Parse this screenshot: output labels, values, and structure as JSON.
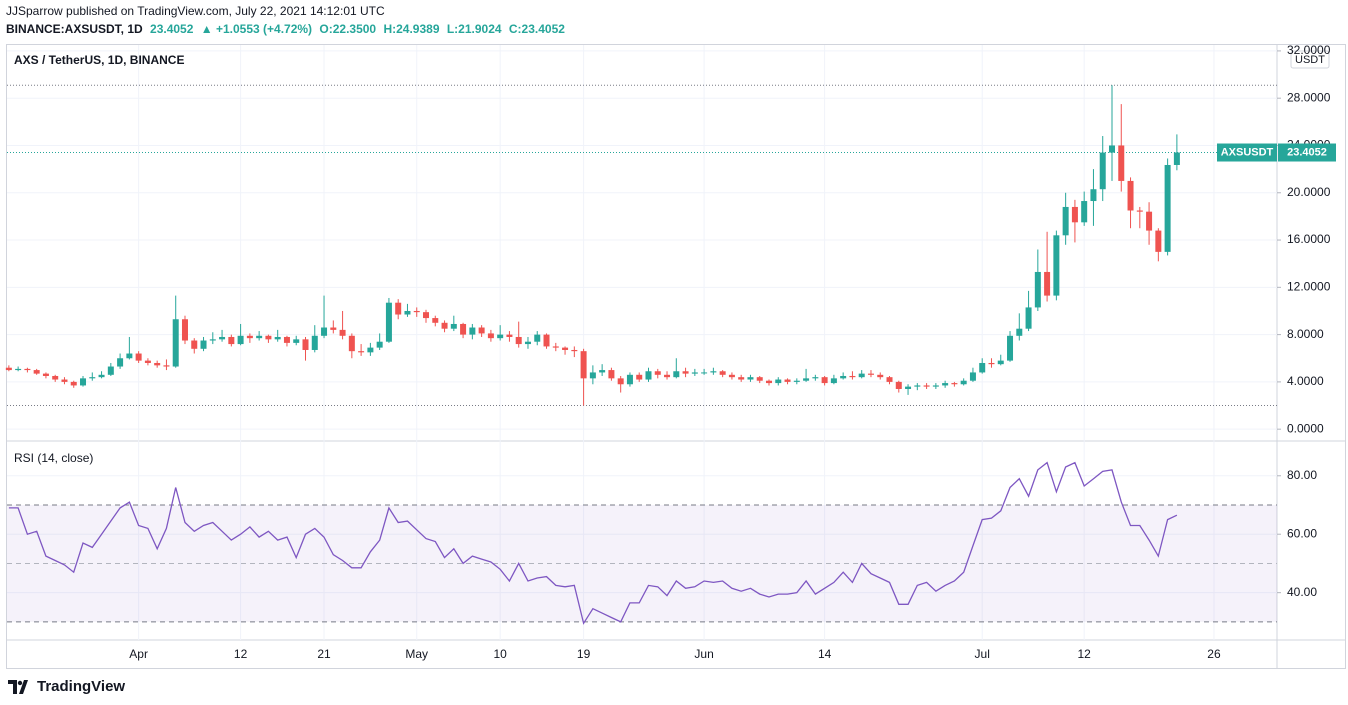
{
  "header": {
    "byline": "JJSparrow published on TradingView.com, July 22, 2021 14:12:01 UTC",
    "symbol": "BINANCE:AXSUSDT, 1D",
    "change": "▲ +1.0553 (+4.72%)",
    "ohlc": [
      "O:22.3500",
      "H:24.9389",
      "L:21.9024",
      "C:23.4052"
    ]
  },
  "footer": {
    "brand": "TradingView"
  },
  "chart_data": [
    {
      "type": "candlestick",
      "title": "AXS / TetherUS, 1D, BINANCE",
      "currency": "USDT",
      "symbol": "AXSUSDT",
      "up_color": "#26a69a",
      "down_color": "#ef5350",
      "ylim": [
        -1.0,
        32.5
      ],
      "yticks": [
        {
          "value": 0,
          "label": "0.0000"
        },
        {
          "value": 4,
          "label": "4.0000"
        },
        {
          "value": 8,
          "label": "8.0000"
        },
        {
          "value": 12,
          "label": "12.0000"
        },
        {
          "value": 16,
          "label": "16.0000"
        },
        {
          "value": 20,
          "label": "20.0000"
        },
        {
          "value": 24,
          "label": "24.0000"
        },
        {
          "value": 28,
          "label": "28.0000"
        },
        {
          "value": 32,
          "label": "32.0000"
        }
      ],
      "open": [
        5.2,
        5.0,
        5.1,
        5.0,
        4.7,
        4.5,
        4.2,
        4.0,
        3.7,
        4.3,
        4.4,
        4.6,
        5.3,
        6.0,
        6.4,
        5.8,
        5.6,
        5.4,
        5.3,
        9.3,
        7.5,
        6.8,
        7.5,
        7.6,
        7.8,
        7.2,
        7.9,
        7.7,
        7.9,
        7.6,
        7.8,
        7.3,
        7.6,
        6.7,
        7.9,
        8.6,
        8.4,
        7.9,
        6.6,
        6.5,
        6.9,
        7.4,
        10.7,
        9.7,
        10.0,
        9.9,
        9.4,
        9.0,
        8.5,
        8.9,
        8.0,
        8.6,
        8.1,
        7.7,
        8.0,
        7.8,
        7.2,
        7.4,
        8.0,
        7.0,
        6.9,
        6.7,
        6.6,
        4.3,
        4.8,
        5.0,
        4.3,
        3.8,
        4.6,
        4.2,
        4.9,
        4.6,
        4.4,
        4.9,
        4.7,
        4.8,
        4.8,
        4.9,
        4.6,
        4.4,
        4.2,
        4.4,
        4.1,
        3.9,
        4.2,
        4.0,
        4.1,
        4.3,
        4.4,
        3.9,
        4.3,
        4.5,
        4.4,
        4.7,
        4.6,
        4.4,
        4.0,
        3.4,
        3.6,
        3.7,
        3.6,
        3.7,
        3.9,
        3.8,
        4.1,
        4.8,
        5.6,
        5.5,
        5.8,
        7.9,
        8.5,
        10.3,
        13.3,
        11.3,
        16.4,
        18.8,
        17.5,
        19.3,
        20.3,
        23.4,
        24.0,
        21.0,
        18.5,
        18.4,
        16.8,
        15.0,
        22.35
      ],
      "high": [
        5.4,
        5.3,
        5.2,
        5.1,
        4.8,
        4.6,
        4.4,
        4.1,
        4.5,
        4.8,
        4.9,
        5.6,
        6.4,
        7.8,
        6.6,
        6.0,
        5.8,
        5.9,
        11.3,
        9.6,
        7.7,
        7.8,
        8.2,
        8.4,
        8.0,
        8.9,
        8.1,
        8.3,
        8.0,
        8.4,
        7.9,
        7.9,
        7.8,
        8.8,
        11.3,
        9.2,
        10.0,
        8.1,
        7.2,
        7.3,
        8.1,
        11.1,
        11.0,
        10.6,
        10.3,
        10.1,
        9.6,
        9.2,
        9.6,
        9.0,
        8.9,
        8.8,
        8.4,
        8.8,
        8.3,
        9.1,
        7.8,
        8.3,
        8.1,
        7.3,
        7.0,
        7.0,
        6.8,
        5.4,
        5.5,
        5.2,
        4.5,
        4.8,
        4.8,
        5.2,
        5.1,
        4.9,
        6.0,
        5.2,
        5.1,
        5.1,
        5.2,
        5.0,
        4.8,
        4.6,
        4.6,
        4.5,
        4.2,
        4.4,
        4.3,
        4.3,
        5.1,
        4.6,
        4.5,
        4.6,
        4.8,
        4.9,
        5.0,
        5.0,
        4.8,
        4.5,
        4.1,
        3.8,
        3.9,
        3.9,
        3.9,
        4.1,
        4.0,
        4.3,
        5.2,
        6.0,
        6.0,
        6.3,
        8.3,
        9.8,
        11.7,
        15.2,
        16.7,
        16.8,
        20.0,
        19.4,
        20.1,
        22.0,
        24.8,
        29.1,
        27.5,
        21.3,
        18.8,
        19.2,
        17.0,
        22.9,
        24.9389
      ],
      "low": [
        4.9,
        4.9,
        4.8,
        4.6,
        4.3,
        4.0,
        3.8,
        3.5,
        3.6,
        4.1,
        4.3,
        4.5,
        5.1,
        5.9,
        5.6,
        5.4,
        5.2,
        5.0,
        5.2,
        7.2,
        6.4,
        6.6,
        7.2,
        7.4,
        7.0,
        7.1,
        7.3,
        7.5,
        7.3,
        7.4,
        7.0,
        7.1,
        5.8,
        6.5,
        7.7,
        8.1,
        7.6,
        6.0,
        6.2,
        6.2,
        6.7,
        7.3,
        9.3,
        9.5,
        9.5,
        9.0,
        8.7,
        8.2,
        8.3,
        7.7,
        7.6,
        7.8,
        7.4,
        7.5,
        7.4,
        6.9,
        6.8,
        7.1,
        6.8,
        6.6,
        6.3,
        6.1,
        2.0,
        3.8,
        4.5,
        4.1,
        3.1,
        3.6,
        4.0,
        4.0,
        4.3,
        4.2,
        4.3,
        4.4,
        4.5,
        4.6,
        4.6,
        4.4,
        4.2,
        4.0,
        4.0,
        3.9,
        3.7,
        3.7,
        3.8,
        3.8,
        4.0,
        4.1,
        3.7,
        3.8,
        4.2,
        4.2,
        4.3,
        4.4,
        4.2,
        3.8,
        3.1,
        2.9,
        3.3,
        3.4,
        3.4,
        3.5,
        3.6,
        3.7,
        4.0,
        4.7,
        5.2,
        5.4,
        5.7,
        7.5,
        8.3,
        10.0,
        10.8,
        10.9,
        15.6,
        15.8,
        17.2,
        17.2,
        19.3,
        21.0,
        20.1,
        17.0,
        17.0,
        15.6,
        14.2,
        14.7,
        21.9024
      ],
      "close": [
        5.0,
        5.1,
        5.0,
        4.7,
        4.5,
        4.2,
        4.0,
        3.7,
        4.3,
        4.4,
        4.6,
        5.3,
        6.0,
        6.4,
        5.8,
        5.6,
        5.4,
        5.3,
        9.3,
        7.5,
        6.8,
        7.5,
        7.6,
        7.8,
        7.2,
        7.9,
        7.7,
        7.9,
        7.6,
        7.8,
        7.3,
        7.6,
        6.7,
        7.9,
        8.6,
        8.4,
        7.9,
        6.6,
        6.5,
        6.9,
        7.4,
        10.7,
        9.7,
        10.0,
        9.9,
        9.4,
        9.0,
        8.5,
        8.9,
        8.0,
        8.6,
        8.1,
        7.7,
        8.0,
        7.8,
        7.2,
        7.4,
        8.0,
        7.0,
        6.9,
        6.7,
        6.6,
        4.3,
        4.8,
        5.0,
        4.3,
        3.8,
        4.6,
        4.2,
        4.9,
        4.6,
        4.4,
        4.9,
        4.7,
        4.8,
        4.8,
        4.9,
        4.6,
        4.4,
        4.2,
        4.4,
        4.1,
        3.9,
        4.2,
        4.0,
        4.1,
        4.3,
        4.4,
        3.9,
        4.3,
        4.5,
        4.4,
        4.7,
        4.6,
        4.4,
        4.0,
        3.4,
        3.6,
        3.7,
        3.6,
        3.7,
        3.9,
        3.8,
        4.1,
        4.8,
        5.6,
        5.5,
        5.8,
        7.9,
        8.5,
        10.3,
        13.3,
        11.3,
        16.4,
        18.8,
        17.5,
        19.3,
        20.3,
        23.4,
        24.0,
        21.0,
        18.5,
        18.4,
        16.8,
        15.0,
        22.35,
        23.4052
      ]
    },
    {
      "type": "line",
      "title": "RSI (14, close)",
      "color": "#7e57c2",
      "band_color": "#7e57c2",
      "xlim": [
        -0.2,
        136.8
      ],
      "xticks": [
        {
          "value": 14,
          "label": "Apr"
        },
        {
          "value": 25,
          "label": "12"
        },
        {
          "value": 34,
          "label": "21"
        },
        {
          "value": 44,
          "label": "May"
        },
        {
          "value": 53,
          "label": "10"
        },
        {
          "value": 62,
          "label": "19"
        },
        {
          "value": 75,
          "label": "Jun"
        },
        {
          "value": 88,
          "label": "14"
        },
        {
          "value": 105,
          "label": "Jul"
        },
        {
          "value": 116,
          "label": "12"
        },
        {
          "value": 130,
          "label": "26"
        }
      ],
      "ylim": [
        23.8,
        91.9
      ],
      "yticks": [
        {
          "value": 40,
          "label": "40.00"
        },
        {
          "value": 60,
          "label": "60.00"
        },
        {
          "value": 80,
          "label": "80.00"
        }
      ],
      "band": [
        30,
        70
      ],
      "midline": 50,
      "values": [
        69,
        69,
        60,
        61,
        52.5,
        51,
        49.5,
        47,
        57,
        55.5,
        60,
        64.5,
        69,
        71,
        63,
        62,
        55,
        62,
        76,
        64,
        61,
        63,
        64,
        61,
        58,
        60,
        62.5,
        59,
        61,
        58,
        59,
        52,
        60,
        62,
        59,
        53,
        51,
        48.5,
        48.5,
        54,
        58,
        69,
        64,
        64.5,
        61.5,
        58.5,
        57.5,
        52,
        55,
        50,
        52.5,
        51.5,
        50.5,
        48,
        44,
        50,
        44,
        45,
        45.5,
        42.5,
        42,
        42.5,
        29.5,
        34.5,
        33,
        31.5,
        30,
        36.5,
        36.5,
        42.5,
        42,
        39,
        44,
        41.5,
        42,
        44,
        43.5,
        44,
        41.5,
        40.5,
        41.5,
        39.5,
        38.5,
        39.5,
        39.5,
        40,
        44,
        39.5,
        41.5,
        43.5,
        47,
        43.5,
        50,
        46.5,
        45,
        43.5,
        36,
        36,
        42.5,
        43.5,
        40.5,
        42.5,
        44,
        47,
        56,
        65,
        65.5,
        68,
        76,
        79,
        73,
        82,
        84.5,
        74.5,
        83,
        84.5,
        76.5,
        79,
        81.5,
        82,
        71,
        63,
        63,
        58,
        52.5,
        65,
        66.5
      ]
    }
  ]
}
